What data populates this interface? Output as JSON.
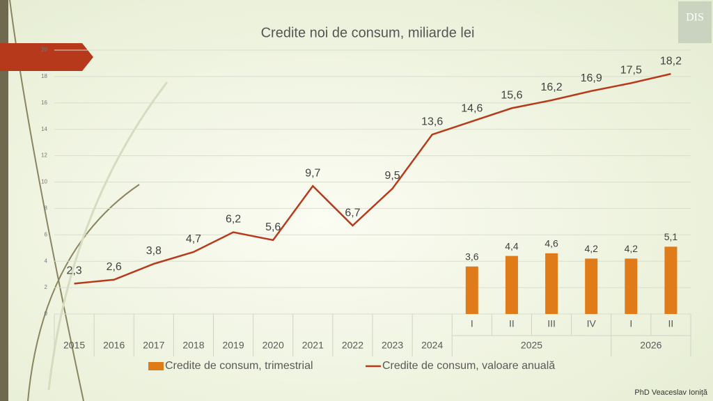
{
  "chart_data": {
    "type": "combo",
    "title": "Credite noi de consum, miliarde lei",
    "categories": [
      "2015",
      "2016",
      "2017",
      "2018",
      "2019",
      "2020",
      "2021",
      "2022",
      "2023",
      "2024",
      "I",
      "II",
      "III",
      "IV",
      "I",
      "II"
    ],
    "category_groups": [
      {
        "label": "2025",
        "span": 4
      },
      {
        "label": "2026",
        "span": 2
      }
    ],
    "series": [
      {
        "name": "Credite de consum, trimestrial",
        "type": "bar",
        "color": "#e07b1a",
        "values": [
          null,
          null,
          null,
          null,
          null,
          null,
          null,
          null,
          null,
          null,
          3.6,
          4.4,
          4.6,
          4.2,
          4.2,
          5.1
        ],
        "value_labels": [
          null,
          null,
          null,
          null,
          null,
          null,
          null,
          null,
          null,
          null,
          "3,6",
          "4,4",
          "4,6",
          "4,2",
          "4,2",
          "5,1"
        ]
      },
      {
        "name": "Credite de consum, valoare anuală",
        "type": "line",
        "color": "#b83a1c",
        "values": [
          2.3,
          2.6,
          3.8,
          4.7,
          6.2,
          5.6,
          9.7,
          6.7,
          9.5,
          13.6,
          14.6,
          15.6,
          16.2,
          16.9,
          17.5,
          18.2
        ],
        "value_labels": [
          "2,3",
          "2,6",
          "3,8",
          "4,7",
          "6,2",
          "5,6",
          "9,7",
          "6,7",
          "9,5",
          "13,6",
          "14,6",
          "15,6",
          "16,2",
          "16,9",
          "17,5",
          "18,2"
        ]
      }
    ],
    "ylim": [
      0,
      20
    ],
    "yticks": [
      0,
      2,
      4,
      6,
      8,
      10,
      12,
      14,
      16,
      18,
      20
    ],
    "grid": true,
    "legend": "bottom",
    "logo": "DIS",
    "footer": "PhD Veaceslav Ioniță"
  }
}
